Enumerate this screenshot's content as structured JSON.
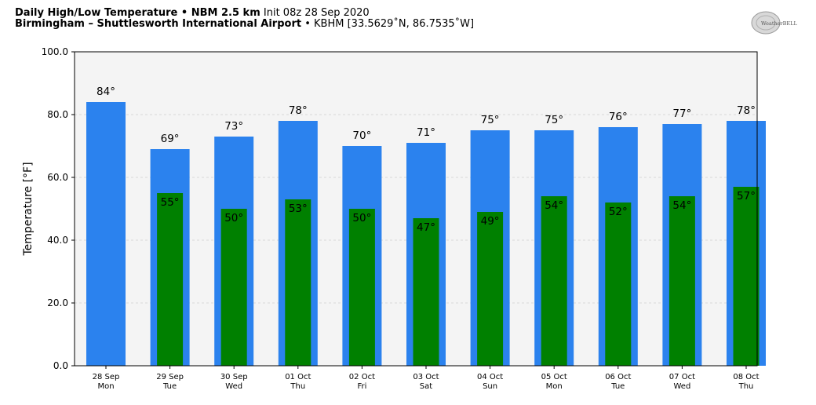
{
  "header": {
    "title_bold": "Daily High/Low Temperature • NBM 2.5 km",
    "title_init": "Init 08z 28 Sep 2020",
    "location_bold": "Birmingham – Shuttlesworth International Airport",
    "location_detail": "• KBHM [33.5629˚N, 86.7535˚W]",
    "logo_text": "WeatherBELL"
  },
  "chart_data": {
    "type": "bar",
    "ylabel": "Temperature [°F]",
    "xlabel": "",
    "ylim": [
      0,
      100
    ],
    "yticks": [
      "0.0",
      "20.0",
      "40.0",
      "60.0",
      "80.0",
      "100.0"
    ],
    "ytick_values": [
      0,
      20,
      40,
      60,
      80,
      100
    ],
    "grid": true,
    "categories": [
      [
        "28 Sep",
        "Mon"
      ],
      [
        "29 Sep",
        "Tue"
      ],
      [
        "30 Sep",
        "Wed"
      ],
      [
        "01 Oct",
        "Thu"
      ],
      [
        "02 Oct",
        "Fri"
      ],
      [
        "03 Oct",
        "Sat"
      ],
      [
        "04 Oct",
        "Sun"
      ],
      [
        "05 Oct",
        "Mon"
      ],
      [
        "06 Oct",
        "Tue"
      ],
      [
        "07 Oct",
        "Wed"
      ],
      [
        "08 Oct",
        "Thu"
      ]
    ],
    "series": [
      {
        "values": [
          84,
          69,
          73,
          78,
          70,
          71,
          75,
          75,
          76,
          77,
          78
        ],
        "labels": [
          "84°",
          "69°",
          "73°",
          "78°",
          "70°",
          "71°",
          "75°",
          "75°",
          "76°",
          "77°",
          "78°"
        ],
        "color": "#2b82ee"
      },
      {
        "values": [
          null,
          55,
          50,
          53,
          50,
          47,
          49,
          54,
          52,
          54,
          57
        ],
        "labels": [
          null,
          "55°",
          "50°",
          "53°",
          "50°",
          "47°",
          "49°",
          "54°",
          "52°",
          "54°",
          "57°"
        ],
        "color": "#008000"
      }
    ],
    "plot_background": "#f4f4f4"
  }
}
